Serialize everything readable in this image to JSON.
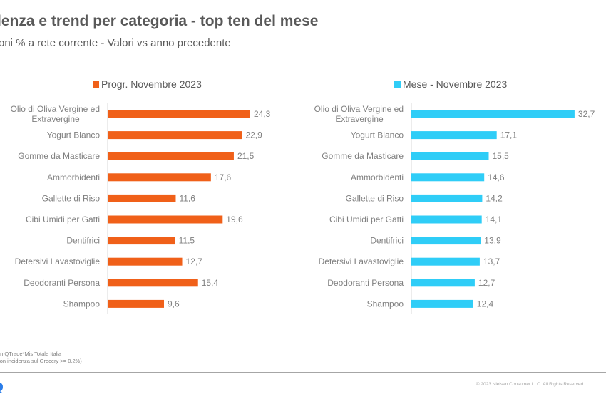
{
  "header": {
    "title": "lenza e trend per categoria - top ten del mese",
    "subtitle": "oni  % a rete corrente - Valori vs anno precedente"
  },
  "chart_data": [
    {
      "type": "bar",
      "orientation": "horizontal",
      "legend": "Progr. Novembre 2023",
      "legend_position": "top",
      "color": "#f06019",
      "categories": [
        "Olio di Oliva Vergine ed Extravergine",
        "Yogurt Bianco",
        "Gomme da Masticare",
        "Ammorbidenti",
        "Gallette di Riso",
        "Cibi Umidi per Gatti",
        "Dentifrici",
        "Detersivi Lavastoviglie",
        "Deodoranti Persona",
        "Shampoo"
      ],
      "category_lines": [
        [
          "Olio di Oliva Vergine ed",
          "Extravergine"
        ],
        [
          "Yogurt Bianco"
        ],
        [
          "Gomme da Masticare"
        ],
        [
          "Ammorbidenti"
        ],
        [
          "Gallette di Riso"
        ],
        [
          "Cibi Umidi per Gatti"
        ],
        [
          "Dentifrici"
        ],
        [
          "Detersivi Lavastoviglie"
        ],
        [
          "Deodoranti Persona"
        ],
        [
          "Shampoo"
        ]
      ],
      "values": [
        24.3,
        22.9,
        21.5,
        17.6,
        11.6,
        19.6,
        11.5,
        12.7,
        15.4,
        9.6
      ],
      "value_labels": [
        "24,3",
        "22,9",
        "21,5",
        "17,6",
        "11,6",
        "19,6",
        "11,5",
        "12,7",
        "15,4",
        "9,6"
      ],
      "xlim": [
        0,
        25
      ],
      "grid": false
    },
    {
      "type": "bar",
      "orientation": "horizontal",
      "legend": "Mese - Novembre 2023",
      "legend_position": "top",
      "color": "#2fcdf7",
      "categories": [
        "Olio di Oliva Vergine ed Extravergine",
        "Yogurt Bianco",
        "Gomme da Masticare",
        "Ammorbidenti",
        "Gallette di Riso",
        "Cibi Umidi per Gatti",
        "Dentifrici",
        "Detersivi Lavastoviglie",
        "Deodoranti Persona",
        "Shampoo"
      ],
      "category_lines": [
        [
          "Olio di Oliva Vergine ed",
          "Extravergine"
        ],
        [
          "Yogurt Bianco"
        ],
        [
          "Gomme da Masticare"
        ],
        [
          "Ammorbidenti"
        ],
        [
          "Gallette di Riso"
        ],
        [
          "Cibi Umidi per Gatti"
        ],
        [
          "Dentifrici"
        ],
        [
          "Detersivi Lavastoviglie"
        ],
        [
          "Deodoranti Persona"
        ],
        [
          "Shampoo"
        ]
      ],
      "values": [
        32.7,
        17.1,
        15.5,
        14.6,
        14.2,
        14.1,
        13.9,
        13.7,
        12.7,
        12.4
      ],
      "value_labels": [
        "32,7",
        "17,1",
        "15,5",
        "14,6",
        "14,2",
        "14,1",
        "13,9",
        "13,7",
        "12,7",
        "12,4"
      ],
      "xlim": [
        0,
        33
      ],
      "grid": false
    }
  ],
  "footer": {
    "source_line1": "enIQTrade*Mis  Totale Italia",
    "source_line2": "con incidenza sul Grocery >= 0.2%)",
    "copyright": "© 2023 Nielsen Consumer LLC. All Rights Reserved."
  }
}
